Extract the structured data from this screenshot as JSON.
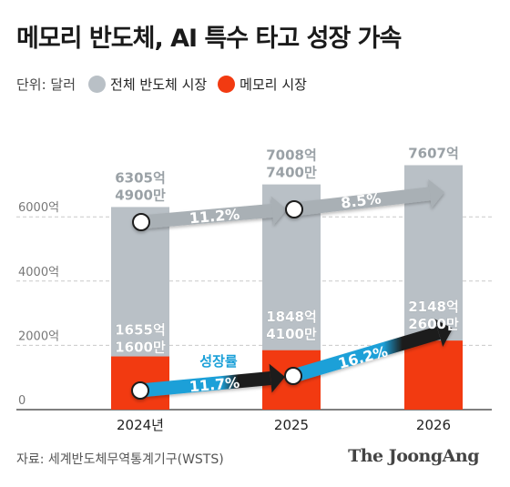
{
  "title": "메모리 반도체, AI 특수 타고 성장 가속",
  "legend": {
    "unit": "단위: 달러",
    "items": [
      {
        "label": "전체 반도체 시장",
        "color": "#b9c0c6"
      },
      {
        "label": "메모리 시장",
        "color": "#f23a11"
      }
    ]
  },
  "chart_data": {
    "type": "bar",
    "categories": [
      "2024년",
      "2025",
      "2026"
    ],
    "ylim": [
      0,
      8000
    ],
    "y_ticks": [
      0,
      2000,
      4000,
      6000
    ],
    "y_tick_labels": [
      "0",
      "2000억",
      "4000억",
      "6000억"
    ],
    "grid": true,
    "legend_position": "top-left",
    "series": [
      {
        "name": "전체 반도체 시장",
        "color": "#b9c0c6",
        "values": [
          6305.49,
          7008.74,
          7607
        ],
        "labels": [
          [
            "6305억",
            "4900만"
          ],
          [
            "7008억",
            "7400만"
          ],
          [
            "7607억"
          ]
        ]
      },
      {
        "name": "메모리 시장",
        "color": "#f23a11",
        "values": [
          1655.16,
          1848.41,
          2148.26
        ],
        "labels": [
          [
            "1655억",
            "1600만"
          ],
          [
            "1848억",
            "4100만"
          ],
          [
            "2148억",
            "2600만"
          ]
        ]
      }
    ],
    "growth_annotations": [
      {
        "series": "전체 반도체 시장",
        "from": "2024년",
        "to": "2025",
        "text": "11.2%"
      },
      {
        "series": "전체 반도체 시장",
        "from": "2025",
        "to": "2026",
        "text": "8.5%"
      },
      {
        "series": "메모리 시장",
        "from": "2024년",
        "to": "2025",
        "text": "11.7%"
      },
      {
        "series": "메모리 시장",
        "from": "2025",
        "to": "2026",
        "text": "16.2%"
      }
    ],
    "annotation_label": {
      "text": "성장률",
      "color": "#1ba0d8"
    },
    "arrow_colors": {
      "total": "#a9b0b5",
      "memory_start": "#1ba0d8",
      "memory_end": "#1e1e1e"
    }
  },
  "source": "자료: 세계반도체무역통계기구(WSTS)",
  "brand": "The JoongAng"
}
